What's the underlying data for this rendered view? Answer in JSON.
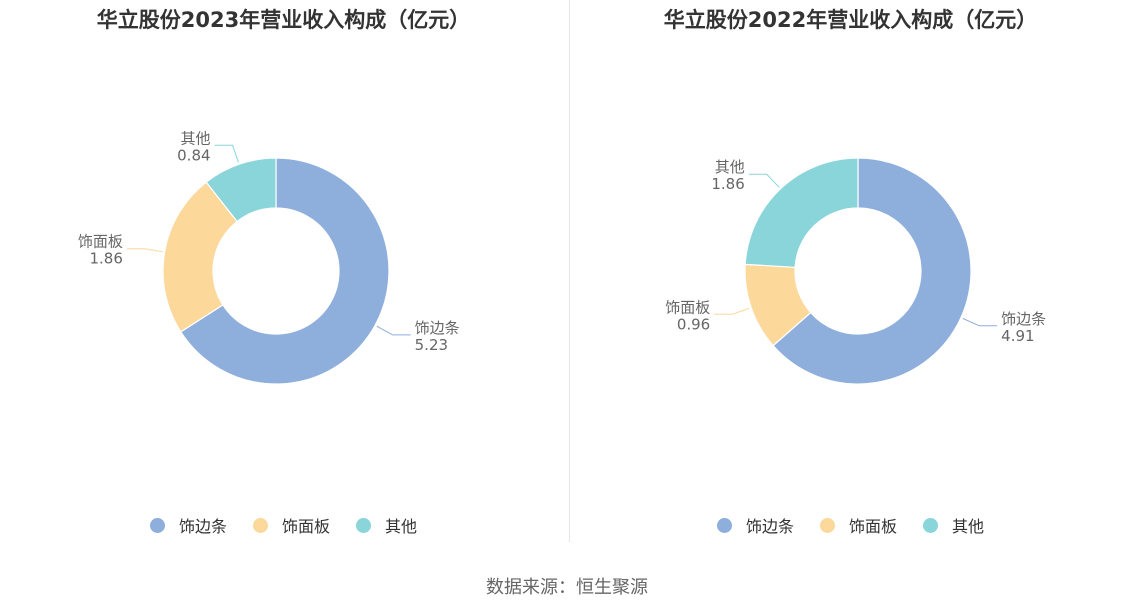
{
  "charts": [
    {
      "title": "华立股份2023年营业收入构成（亿元）"
    },
    {
      "title": "华立股份2022年营业收入构成（亿元）"
    }
  ],
  "chart_data": [
    {
      "type": "pie",
      "title": "华立股份2023年营业收入构成（亿元）",
      "donut": true,
      "legend_position": "bottom",
      "series": [
        {
          "name": "饰边条",
          "value": 5.23,
          "color": "#8eaedc"
        },
        {
          "name": "饰面板",
          "value": 1.86,
          "color": "#fdd89b"
        },
        {
          "name": "其他",
          "value": 0.84,
          "color": "#89d5da"
        }
      ]
    },
    {
      "type": "pie",
      "title": "华立股份2022年营业收入构成（亿元）",
      "donut": true,
      "legend_position": "bottom",
      "series": [
        {
          "name": "饰边条",
          "value": 4.91,
          "color": "#8eaedc"
        },
        {
          "name": "饰面板",
          "value": 0.96,
          "color": "#fdd89b"
        },
        {
          "name": "其他",
          "value": 1.86,
          "color": "#89d5da"
        }
      ]
    }
  ],
  "legend": [
    {
      "name": "饰边条",
      "color": "#8eaedc"
    },
    {
      "name": "饰面板",
      "color": "#fdd89b"
    },
    {
      "name": "其他",
      "color": "#89d5da"
    }
  ],
  "footer": {
    "source": "数据来源：恒生聚源"
  }
}
